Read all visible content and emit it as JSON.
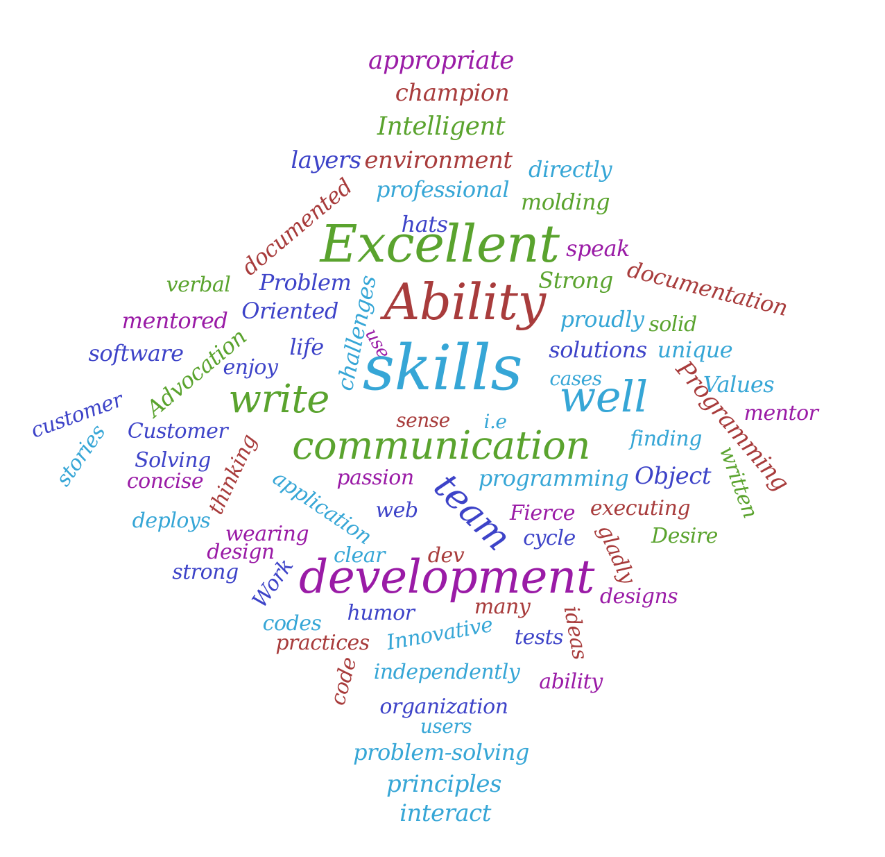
{
  "palette": {
    "purple": "#9a1ba6",
    "brown": "#a83c3c",
    "green": "#5aa32e",
    "blue": "#3d43c8",
    "cyan": "#36a6d6"
  },
  "words": [
    {
      "text": "appropriate",
      "color": "purple"
    },
    {
      "text": "champion",
      "color": "brown"
    },
    {
      "text": "Intelligent",
      "color": "green"
    },
    {
      "text": "layers",
      "color": "blue"
    },
    {
      "text": "environment",
      "color": "brown"
    },
    {
      "text": "directly",
      "color": "cyan"
    },
    {
      "text": "professional",
      "color": "cyan"
    },
    {
      "text": "molding",
      "color": "green"
    },
    {
      "text": "documented",
      "color": "brown"
    },
    {
      "text": "hats",
      "color": "blue"
    },
    {
      "text": "Excellent",
      "color": "green"
    },
    {
      "text": "speak",
      "color": "purple"
    },
    {
      "text": "documentation",
      "color": "brown"
    },
    {
      "text": "verbal",
      "color": "green"
    },
    {
      "text": "Problem",
      "color": "blue"
    },
    {
      "text": "Ability",
      "color": "brown"
    },
    {
      "text": "Strong",
      "color": "green"
    },
    {
      "text": "Oriented",
      "color": "blue"
    },
    {
      "text": "mentored",
      "color": "purple"
    },
    {
      "text": "challenges",
      "color": "cyan"
    },
    {
      "text": "use",
      "color": "purple"
    },
    {
      "text": "proudly",
      "color": "cyan"
    },
    {
      "text": "solid",
      "color": "green"
    },
    {
      "text": "software",
      "color": "blue"
    },
    {
      "text": "life",
      "color": "blue"
    },
    {
      "text": "Advocation",
      "color": "green"
    },
    {
      "text": "skills",
      "color": "cyan"
    },
    {
      "text": "solutions",
      "color": "blue"
    },
    {
      "text": "unique",
      "color": "cyan"
    },
    {
      "text": "enjoy",
      "color": "blue"
    },
    {
      "text": "Programming",
      "color": "brown"
    },
    {
      "text": "cases",
      "color": "cyan"
    },
    {
      "text": "Values",
      "color": "cyan"
    },
    {
      "text": "customer",
      "color": "blue"
    },
    {
      "text": "write",
      "color": "green"
    },
    {
      "text": "well",
      "color": "cyan"
    },
    {
      "text": "mentor",
      "color": "purple"
    },
    {
      "text": "stories",
      "color": "cyan"
    },
    {
      "text": "Customer",
      "color": "blue"
    },
    {
      "text": "sense",
      "color": "brown"
    },
    {
      "text": "i.e",
      "color": "cyan"
    },
    {
      "text": "communication",
      "color": "green"
    },
    {
      "text": "finding",
      "color": "cyan"
    },
    {
      "text": "written",
      "color": "green"
    },
    {
      "text": "Solving",
      "color": "blue"
    },
    {
      "text": "thinking",
      "color": "brown"
    },
    {
      "text": "concise",
      "color": "purple"
    },
    {
      "text": "passion",
      "color": "purple"
    },
    {
      "text": "team",
      "color": "blue"
    },
    {
      "text": "programming",
      "color": "cyan"
    },
    {
      "text": "Object",
      "color": "blue"
    },
    {
      "text": "application",
      "color": "cyan"
    },
    {
      "text": "deploys",
      "color": "cyan"
    },
    {
      "text": "web",
      "color": "blue"
    },
    {
      "text": "Fierce",
      "color": "purple"
    },
    {
      "text": "executing",
      "color": "brown"
    },
    {
      "text": "wearing",
      "color": "purple"
    },
    {
      "text": "cycle",
      "color": "blue"
    },
    {
      "text": "gladly",
      "color": "brown"
    },
    {
      "text": "Desire",
      "color": "green"
    },
    {
      "text": "design",
      "color": "purple"
    },
    {
      "text": "clear",
      "color": "cyan"
    },
    {
      "text": "dev",
      "color": "brown"
    },
    {
      "text": "strong",
      "color": "blue"
    },
    {
      "text": "Work",
      "color": "blue"
    },
    {
      "text": "development",
      "color": "purple"
    },
    {
      "text": "designs",
      "color": "purple"
    },
    {
      "text": "many",
      "color": "brown"
    },
    {
      "text": "codes",
      "color": "cyan"
    },
    {
      "text": "humor",
      "color": "blue"
    },
    {
      "text": "ideas",
      "color": "brown"
    },
    {
      "text": "practices",
      "color": "brown"
    },
    {
      "text": "Innovative",
      "color": "cyan"
    },
    {
      "text": "tests",
      "color": "blue"
    },
    {
      "text": "code",
      "color": "brown"
    },
    {
      "text": "independently",
      "color": "cyan"
    },
    {
      "text": "ability",
      "color": "purple"
    },
    {
      "text": "organization",
      "color": "blue"
    },
    {
      "text": "users",
      "color": "cyan"
    },
    {
      "text": "problem-solving",
      "color": "cyan"
    },
    {
      "text": "principles",
      "color": "cyan"
    },
    {
      "text": "interact",
      "color": "cyan"
    }
  ]
}
